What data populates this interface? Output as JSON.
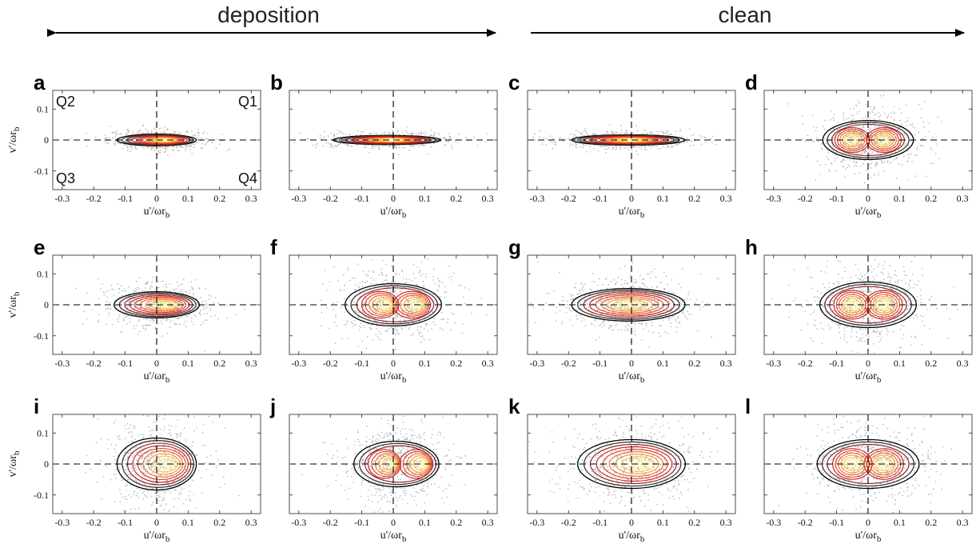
{
  "headers": {
    "left": "deposition",
    "right": "clean"
  },
  "quadrant_labels": [
    "Q2",
    "Q1",
    "Q3",
    "Q4"
  ],
  "axis_labels": {
    "x": {
      "main": "u'/ωr",
      "sub": "b"
    },
    "y": {
      "main": "v'/ωr",
      "sub": "b"
    }
  },
  "colors": {
    "scatter": "#b4b4b4",
    "contours": [
      "#000000",
      "#3a3a3a",
      "#8b1a1a",
      "#c81e1e",
      "#e33b1e",
      "#f0662a",
      "#f79632",
      "#fbc23e",
      "#fde870",
      "#fff6c8"
    ],
    "frame": "#222222",
    "crosshair": "#000000",
    "arrows": "#000000"
  },
  "chart_data": [
    {
      "panel": "a",
      "type": "scatter",
      "xlim": [
        -0.33,
        0.33
      ],
      "ylim": [
        -0.16,
        0.16
      ],
      "xticks": [
        -0.3,
        -0.2,
        -0.1,
        0,
        0.1,
        0.2,
        0.3
      ],
      "yticks": [
        -0.1,
        0,
        0.1
      ],
      "cx": 0.0,
      "cy": 0.0,
      "sx": 0.14,
      "sy": 0.018,
      "bi": false,
      "density_peak": [
        0.03,
        0.0
      ]
    },
    {
      "panel": "b",
      "type": "scatter",
      "xlim": [
        -0.33,
        0.33
      ],
      "ylim": [
        -0.16,
        0.16
      ],
      "xticks": [
        -0.3,
        -0.2,
        -0.1,
        0,
        0.1,
        0.2,
        0.3
      ],
      "yticks": [
        -0.1,
        0,
        0.1
      ],
      "cx": -0.02,
      "cy": 0.0,
      "sx": 0.19,
      "sy": 0.014,
      "bi": false,
      "density_peak": [
        0.0,
        0.0
      ]
    },
    {
      "panel": "c",
      "type": "scatter",
      "xlim": [
        -0.33,
        0.33
      ],
      "ylim": [
        -0.16,
        0.16
      ],
      "xticks": [
        -0.3,
        -0.2,
        -0.1,
        0,
        0.1,
        0.2,
        0.3
      ],
      "yticks": [
        -0.1,
        0,
        0.1
      ],
      "cx": -0.01,
      "cy": 0.0,
      "sx": 0.2,
      "sy": 0.016,
      "bi": false,
      "density_peak": [
        0.0,
        0.0
      ]
    },
    {
      "panel": "d",
      "type": "scatter",
      "xlim": [
        -0.33,
        0.33
      ],
      "ylim": [
        -0.16,
        0.16
      ],
      "xticks": [
        -0.3,
        -0.2,
        -0.1,
        0,
        0.1,
        0.2,
        0.3
      ],
      "yticks": [
        -0.1,
        0,
        0.1
      ],
      "cx": 0.0,
      "cy": 0.0,
      "sx": 0.16,
      "sy": 0.06,
      "bi": true,
      "density_peak": [
        0.0,
        0.0
      ]
    },
    {
      "panel": "e",
      "type": "scatter",
      "xlim": [
        -0.33,
        0.33
      ],
      "ylim": [
        -0.16,
        0.16
      ],
      "xticks": [
        -0.3,
        -0.2,
        -0.1,
        0,
        0.1,
        0.2,
        0.3
      ],
      "yticks": [
        -0.1,
        0,
        0.1
      ],
      "cx": 0.0,
      "cy": 0.0,
      "sx": 0.15,
      "sy": 0.04,
      "bi": false,
      "density_peak": [
        0.03,
        0.0
      ]
    },
    {
      "panel": "f",
      "type": "scatter",
      "xlim": [
        -0.33,
        0.33
      ],
      "ylim": [
        -0.16,
        0.16
      ],
      "xticks": [
        -0.3,
        -0.2,
        -0.1,
        0,
        0.1,
        0.2,
        0.3
      ],
      "yticks": [
        -0.1,
        0,
        0.1
      ],
      "cx": 0.0,
      "cy": 0.0,
      "sx": 0.17,
      "sy": 0.065,
      "bi": true,
      "density_peak": [
        0.03,
        0.0
      ]
    },
    {
      "panel": "g",
      "type": "scatter",
      "xlim": [
        -0.33,
        0.33
      ],
      "ylim": [
        -0.16,
        0.16
      ],
      "xticks": [
        -0.3,
        -0.2,
        -0.1,
        0,
        0.1,
        0.2,
        0.3
      ],
      "yticks": [
        -0.1,
        0,
        0.1
      ],
      "cx": -0.01,
      "cy": 0.0,
      "sx": 0.2,
      "sy": 0.05,
      "bi": false,
      "density_peak": [
        0.0,
        0.0
      ]
    },
    {
      "panel": "h",
      "type": "scatter",
      "xlim": [
        -0.33,
        0.33
      ],
      "ylim": [
        -0.16,
        0.16
      ],
      "xticks": [
        -0.3,
        -0.2,
        -0.1,
        0,
        0.1,
        0.2,
        0.3
      ],
      "yticks": [
        -0.1,
        0,
        0.1
      ],
      "cx": 0.0,
      "cy": 0.0,
      "sx": 0.17,
      "sy": 0.07,
      "bi": true,
      "density_peak": [
        0.0,
        0.0
      ]
    },
    {
      "panel": "i",
      "type": "scatter",
      "xlim": [
        -0.33,
        0.33
      ],
      "ylim": [
        -0.16,
        0.16
      ],
      "xticks": [
        -0.3,
        -0.2,
        -0.1,
        0,
        0.1,
        0.2,
        0.3
      ],
      "yticks": [
        -0.1,
        0,
        0.1
      ],
      "cx": 0.0,
      "cy": 0.0,
      "sx": 0.14,
      "sy": 0.08,
      "bi": false,
      "density_peak": [
        0.04,
        0.0
      ]
    },
    {
      "panel": "j",
      "type": "scatter",
      "xlim": [
        -0.33,
        0.33
      ],
      "ylim": [
        -0.16,
        0.16
      ],
      "xticks": [
        -0.3,
        -0.2,
        -0.1,
        0,
        0.1,
        0.2,
        0.3
      ],
      "yticks": [
        -0.1,
        0,
        0.1
      ],
      "cx": 0.01,
      "cy": 0.0,
      "sx": 0.15,
      "sy": 0.07,
      "bi": true,
      "density_peak": [
        0.05,
        0.0
      ]
    },
    {
      "panel": "k",
      "type": "scatter",
      "xlim": [
        -0.33,
        0.33
      ],
      "ylim": [
        -0.16,
        0.16
      ],
      "xticks": [
        -0.3,
        -0.2,
        -0.1,
        0,
        0.1,
        0.2,
        0.3
      ],
      "yticks": [
        -0.1,
        0,
        0.1
      ],
      "cx": 0.0,
      "cy": 0.0,
      "sx": 0.19,
      "sy": 0.075,
      "bi": false,
      "density_peak": [
        0.03,
        0.0
      ]
    },
    {
      "panel": "l",
      "type": "scatter",
      "xlim": [
        -0.33,
        0.33
      ],
      "ylim": [
        -0.16,
        0.16
      ],
      "xticks": [
        -0.3,
        -0.2,
        -0.1,
        0,
        0.1,
        0.2,
        0.3
      ],
      "yticks": [
        -0.1,
        0,
        0.1
      ],
      "cx": 0.0,
      "cy": 0.0,
      "sx": 0.18,
      "sy": 0.075,
      "bi": true,
      "density_peak": [
        0.0,
        0.0
      ]
    }
  ]
}
